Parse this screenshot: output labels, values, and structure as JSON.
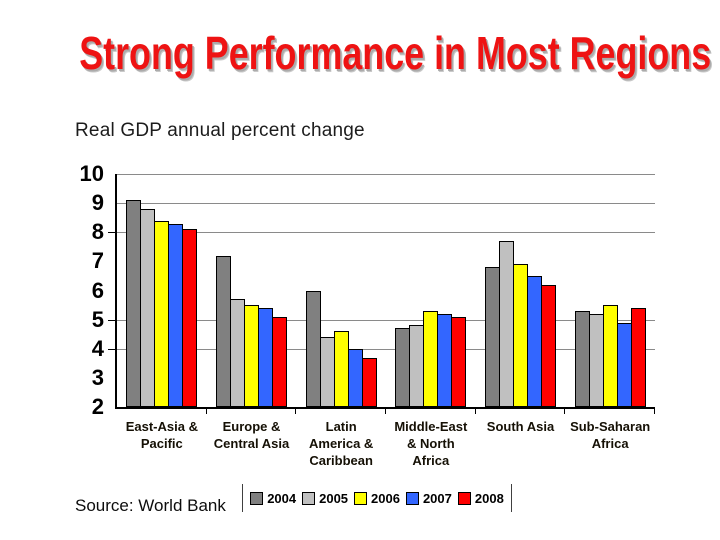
{
  "slide": {
    "title": "Strong Performance in Most Regions",
    "subtitle": "Real GDP annual percent change",
    "source": "Source: World Bank"
  },
  "colors": {
    "title_red": "#ee1313",
    "title_shadow": "#ababab",
    "text_dark": "#1c1c1c",
    "grid_gray": "#8a8a8a",
    "bar_2004": "#808080",
    "bar_2005": "#c0c0c0",
    "bar_2006": "#ffff00",
    "bar_2007": "#3366ff",
    "bar_2008": "#fe0000"
  },
  "chart_data": {
    "type": "bar",
    "title": "Real GDP annual percent change",
    "categories": [
      "East-Asia & Pacific",
      "Europe & Central Asia",
      "Latin America & Caribbean",
      "Middle-East & North Africa",
      "South Asia",
      "Sub-Saharan Africa"
    ],
    "series": [
      {
        "name": "2004",
        "color": "#808080",
        "values": [
          9.1,
          7.2,
          6.0,
          4.7,
          6.8,
          5.3
        ]
      },
      {
        "name": "2005",
        "color": "#c0c0c0",
        "values": [
          8.8,
          5.7,
          4.4,
          4.8,
          7.7,
          5.2
        ]
      },
      {
        "name": "2006",
        "color": "#ffff00",
        "values": [
          8.4,
          5.5,
          4.6,
          5.3,
          6.9,
          5.5
        ]
      },
      {
        "name": "2007",
        "color": "#3366ff",
        "values": [
          8.3,
          5.4,
          4.0,
          5.2,
          6.5,
          4.9
        ]
      },
      {
        "name": "2008",
        "color": "#fe0000",
        "values": [
          8.1,
          5.1,
          3.7,
          5.1,
          6.2,
          5.4
        ]
      }
    ],
    "xlabel": "",
    "ylabel": "",
    "ylim": [
      2,
      10
    ],
    "yticks": [
      10,
      9,
      8,
      7,
      6,
      5,
      4,
      3,
      2
    ],
    "gridline_values": [
      10,
      9,
      8,
      5,
      4
    ],
    "axis_tick_values": [
      8,
      5,
      4
    ],
    "grid": "horizontal-partial",
    "legend_position": "bottom",
    "legend_entries": [
      "2004",
      "2005",
      "2006",
      "2007",
      "2008"
    ]
  }
}
